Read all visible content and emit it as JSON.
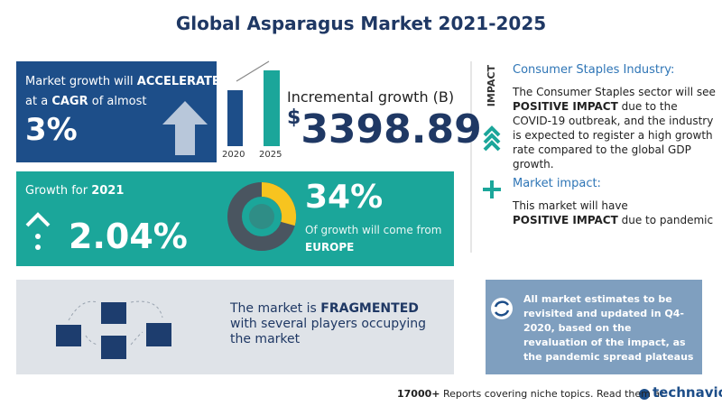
{
  "title": "Global Asparagus Market 2021-2025",
  "cagr_panel": {
    "line1_prefix": "Market growth will",
    "line1_bold": "ACCELERATE",
    "line2_prefix": "at a",
    "line2_bold": "CAGR",
    "line2_suffix": "of almost",
    "value": "3%"
  },
  "incremental": {
    "years": [
      "2020",
      "2025"
    ],
    "label": "Incremental growth (B)",
    "currency": "$",
    "value": "3398.89"
  },
  "growth_panel": {
    "label": "Growth for",
    "year": "2021",
    "value": "2.04%",
    "share": "34%",
    "share_text": "Of growth will come from",
    "region": "EUROPE"
  },
  "fragmented": {
    "prefix": "The market is",
    "bold": "FRAGMENTED",
    "rest": "with several players occupying the market"
  },
  "impact": {
    "heading": "IMPACT",
    "industry_title": "Consumer Staples Industry:",
    "industry_pre": "The Consumer Staples sector will see",
    "industry_bold": "POSITIVE IMPACT",
    "industry_post": "due to the COVID-19 outbreak, and the industry is expected to register a high growth rate compared to the global GDP growth.",
    "market_title": "Market impact:",
    "market_pre": "This market will have",
    "market_bold": "POSITIVE IMPACT",
    "market_post": "due to pandemic"
  },
  "note": "All market estimates to be revisited and updated in Q4-2020, based on the revaluation of the impact, as the pandemic spread plateaus",
  "footer": {
    "bold": "17000+",
    "text": "Reports covering niche topics. Read them at",
    "brand": "technavio"
  }
}
